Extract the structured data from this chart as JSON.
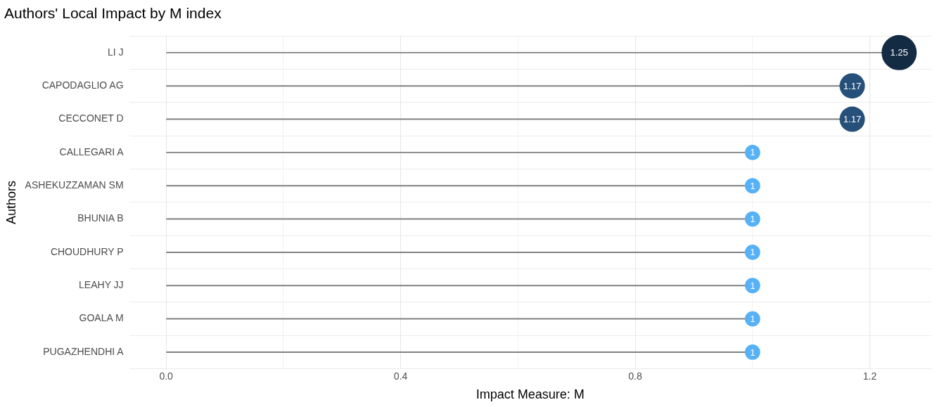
{
  "chart_data": {
    "type": "lollipop",
    "orientation": "horizontal",
    "title": "Authors' Local Impact by M index",
    "xlabel": "Impact Measure: M",
    "ylabel": "Authors",
    "categories": [
      "LI J",
      "CAPODAGLIO AG",
      "CECCONET D",
      "CALLEGARI A",
      "ASHEKUZZAMAN SM",
      "BHUNIA B",
      "CHOUDHURY P",
      "LEAHY JJ",
      "GOALA M",
      "PUGAZHENDHI A"
    ],
    "values": [
      1.25,
      1.17,
      1.17,
      1,
      1,
      1,
      1,
      1,
      1,
      1
    ],
    "colors": [
      "#132b43",
      "#26507a",
      "#26507a",
      "#56b1f7",
      "#56b1f7",
      "#56b1f7",
      "#56b1f7",
      "#56b1f7",
      "#56b1f7",
      "#56b1f7"
    ],
    "color": "#808080",
    "sizes": [
      1,
      0.52,
      0.52,
      0.19,
      0.19,
      0.19,
      0.19,
      0.19,
      0.19,
      0.19
    ],
    "xlim": [
      -0.063,
      1.305
    ],
    "xticks": [
      {
        "value": 0,
        "label": "0.0"
      },
      {
        "value": 0.2,
        "label": null
      },
      {
        "value": 0.4,
        "label": "0.4"
      },
      {
        "value": 0.6,
        "label": null
      },
      {
        "value": 0.8,
        "label": "0.8"
      },
      {
        "value": 1.0,
        "label": null
      },
      {
        "value": 1.2,
        "label": "1.2"
      }
    ],
    "grid": true,
    "data_labels": true,
    "marker": "circle"
  }
}
